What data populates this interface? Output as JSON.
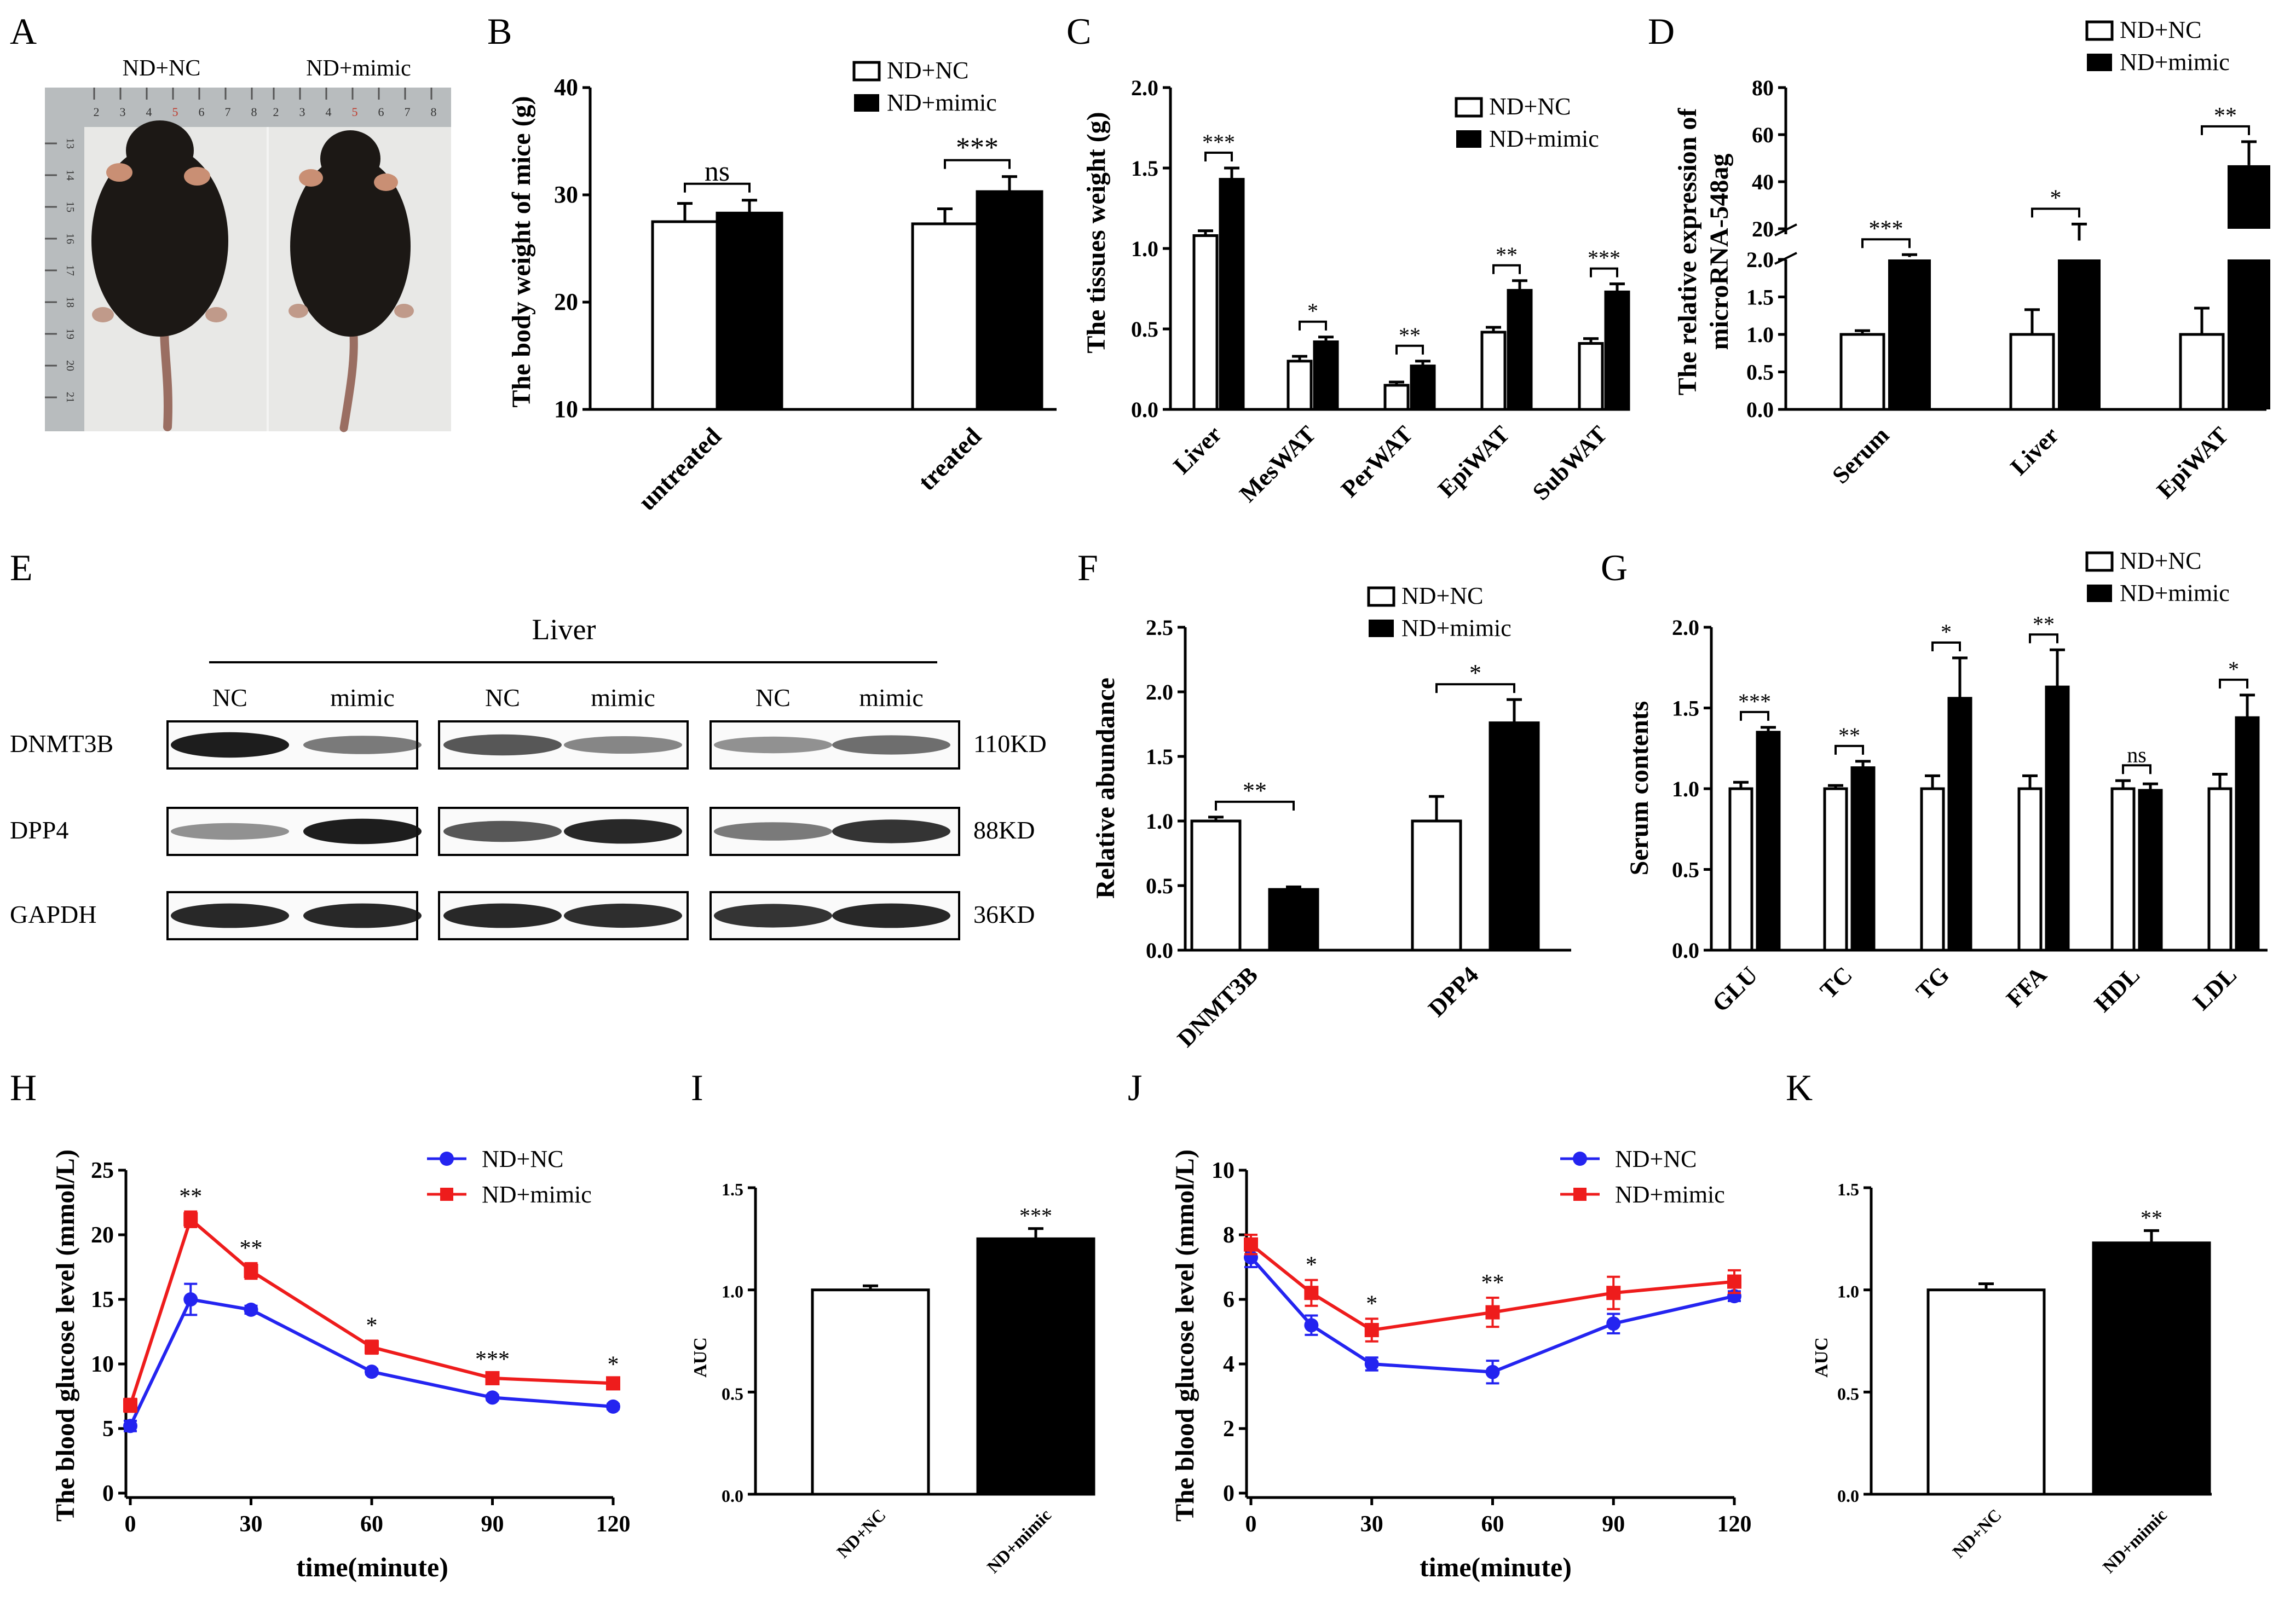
{
  "colors": {
    "blue": "#2424f0",
    "red": "#ee1c1c",
    "black": "#000000",
    "white": "#ffffff",
    "photo_bg": "#e8e8e6",
    "ruler": "#b8bcbe",
    "mouse": "#1c1815",
    "tail": "#9a6e62",
    "ear": "#c98f74"
  },
  "chart_data": [
    {
      "panel": "A",
      "type": "photo",
      "labels": [
        "ND+NC",
        "ND+mimic"
      ],
      "ruler_ticks_top": [
        "2",
        "3",
        "4",
        "5",
        "6",
        "7",
        "8"
      ],
      "ruler_ticks_left": [
        "13",
        "14",
        "15",
        "16",
        "17",
        "18",
        "19",
        "20",
        "21"
      ]
    },
    {
      "panel": "B",
      "type": "bar",
      "ylabel": "The body weight of mice (g)",
      "ylim": [
        10,
        40
      ],
      "yticks": [
        "10",
        "20",
        "30",
        "40"
      ],
      "categories": [
        "untreated",
        "treated"
      ],
      "legend": [
        "ND+NC",
        "ND+mimic"
      ],
      "series": [
        {
          "name": "ND+NC",
          "values": [
            27.5,
            27.3
          ],
          "errors": [
            1.7,
            1.4
          ]
        },
        {
          "name": "ND+mimic",
          "values": [
            28.3,
            30.3
          ],
          "errors": [
            1.2,
            1.4
          ]
        }
      ],
      "significance": [
        "ns",
        "***"
      ]
    },
    {
      "panel": "C",
      "type": "bar",
      "ylabel": "The tissues weight (g)",
      "ylim": [
        0,
        2.0
      ],
      "yticks": [
        "0.0",
        "0.5",
        "1.0",
        "1.5",
        "2.0"
      ],
      "categories": [
        "Liver",
        "MesWAT",
        "PerWAT",
        "EpiWAT",
        "SubWAT"
      ],
      "legend": [
        "ND+NC",
        "ND+mimic"
      ],
      "series": [
        {
          "name": "ND+NC",
          "values": [
            1.08,
            0.3,
            0.15,
            0.48,
            0.41
          ],
          "errors": [
            0.03,
            0.03,
            0.02,
            0.03,
            0.03
          ]
        },
        {
          "name": "ND+mimic",
          "values": [
            1.43,
            0.42,
            0.27,
            0.74,
            0.73
          ],
          "errors": [
            0.07,
            0.03,
            0.03,
            0.06,
            0.05
          ]
        }
      ],
      "significance": [
        "***",
        "*",
        "**",
        "**",
        "***"
      ]
    },
    {
      "panel": "D",
      "type": "bar",
      "ylabel": [
        "The relative expression of",
        "microRNA-548ag"
      ],
      "axis_break": true,
      "lower_ylim": [
        0,
        2.0
      ],
      "upper_ylim": [
        20,
        80
      ],
      "yticks_lower": [
        "0.0",
        "0.5",
        "1.0",
        "1.5",
        "2.0"
      ],
      "yticks_upper": [
        "20",
        "40",
        "60",
        "80"
      ],
      "categories": [
        "Serum",
        "Liver",
        "EpiWAT"
      ],
      "legend": [
        "ND+NC",
        "ND+mimic"
      ],
      "series": [
        {
          "name": "ND+NC",
          "values": [
            1.0,
            1.0,
            1.0
          ],
          "errors": [
            0.05,
            0.33,
            0.35
          ]
        },
        {
          "name": "ND+mimic",
          "values": [
            8,
            15,
            47
          ],
          "errors": [
            1,
            7,
            10
          ]
        }
      ],
      "significance": [
        "***",
        "*",
        "**"
      ]
    },
    {
      "panel": "E",
      "type": "blot",
      "title": "Liver",
      "lane_labels": [
        "NC",
        "mimic",
        "NC",
        "mimic",
        "NC",
        "mimic"
      ],
      "rows": [
        {
          "protein": "DNMT3B",
          "size": "110KD"
        },
        {
          "protein": "DPP4",
          "size": "88KD"
        },
        {
          "protein": "GAPDH",
          "size": "36KD"
        }
      ]
    },
    {
      "panel": "F",
      "type": "bar",
      "ylabel": "Relative abundance",
      "ylim": [
        0,
        2.5
      ],
      "yticks": [
        "0.0",
        "0.5",
        "1.0",
        "1.5",
        "2.0",
        "2.5"
      ],
      "categories": [
        "DNMT3B",
        "DPP4"
      ],
      "legend": [
        "ND+NC",
        "ND+mimic"
      ],
      "series": [
        {
          "name": "ND+NC",
          "values": [
            1.0,
            1.0
          ],
          "errors": [
            0.03,
            0.19
          ]
        },
        {
          "name": "ND+mimic",
          "values": [
            0.47,
            1.76
          ],
          "errors": [
            0.02,
            0.18
          ]
        }
      ],
      "significance": [
        "**",
        "*"
      ]
    },
    {
      "panel": "G",
      "type": "bar",
      "ylabel": "Serum contents",
      "ylim": [
        0,
        2.0
      ],
      "yticks": [
        "0.0",
        "0.5",
        "1.0",
        "1.5",
        "2.0"
      ],
      "categories": [
        "GLU",
        "TC",
        "TG",
        "FFA",
        "HDL",
        "LDL"
      ],
      "legend": [
        "ND+NC",
        "ND+mimic"
      ],
      "series": [
        {
          "name": "ND+NC",
          "values": [
            1.0,
            1.0,
            1.0,
            1.0,
            1.0,
            1.0
          ],
          "errors": [
            0.04,
            0.02,
            0.08,
            0.08,
            0.05,
            0.09
          ]
        },
        {
          "name": "ND+mimic",
          "values": [
            1.35,
            1.13,
            1.56,
            1.63,
            0.99,
            1.44
          ],
          "errors": [
            0.03,
            0.04,
            0.25,
            0.23,
            0.04,
            0.14
          ]
        }
      ],
      "significance": [
        "***",
        "**",
        "*",
        "**",
        "ns",
        "*"
      ]
    },
    {
      "panel": "H",
      "type": "line",
      "xlabel": "time(minute)",
      "ylabel": "The blood glucose level (mmol/L)",
      "xlim": [
        0,
        120
      ],
      "ylim": [
        0,
        25
      ],
      "xticks": [
        "0",
        "30",
        "60",
        "90",
        "120"
      ],
      "yticks": [
        "0",
        "5",
        "10",
        "15",
        "20",
        "25"
      ],
      "x": [
        0,
        15,
        30,
        60,
        90,
        120
      ],
      "legend": [
        "ND+NC",
        "ND+mimic"
      ],
      "series": [
        {
          "name": "ND+NC",
          "values": [
            5.2,
            15.0,
            14.2,
            9.4,
            7.4,
            6.7
          ],
          "errors": [
            0.4,
            1.2,
            0.3,
            0.2,
            0.2,
            0.2
          ]
        },
        {
          "name": "ND+mimic",
          "values": [
            6.8,
            21.2,
            17.2,
            11.3,
            8.9,
            8.5
          ],
          "errors": [
            0.5,
            0.6,
            0.6,
            0.5,
            0.3,
            0.3
          ]
        }
      ],
      "significance": [
        "",
        "**",
        "**",
        "*",
        "***",
        "*"
      ]
    },
    {
      "panel": "I",
      "type": "bar",
      "ylabel": "AUC",
      "ylim": [
        0,
        1.5
      ],
      "yticks": [
        "0.0",
        "0.5",
        "1.0",
        "1.5"
      ],
      "categories": [
        "ND+NC",
        "ND+mimic"
      ],
      "values": [
        1.0,
        1.25
      ],
      "errors": [
        0.02,
        0.05
      ],
      "significance": "***"
    },
    {
      "panel": "J",
      "type": "line",
      "xlabel": "time(minute)",
      "ylabel": "The blood glucose level (mmol/L)",
      "xlim": [
        0,
        120
      ],
      "ylim": [
        0,
        10
      ],
      "xticks": [
        "0",
        "30",
        "60",
        "90",
        "120"
      ],
      "yticks": [
        "0",
        "2",
        "4",
        "6",
        "8",
        "10"
      ],
      "x": [
        0,
        15,
        30,
        60,
        90,
        120
      ],
      "legend": [
        "ND+NC",
        "ND+mimic"
      ],
      "series": [
        {
          "name": "ND+NC",
          "values": [
            7.3,
            5.2,
            4.0,
            3.75,
            5.25,
            6.1
          ],
          "errors": [
            0.3,
            0.3,
            0.2,
            0.35,
            0.3,
            0.15
          ]
        },
        {
          "name": "ND+mimic",
          "values": [
            7.7,
            6.2,
            5.05,
            5.6,
            6.2,
            6.55
          ],
          "errors": [
            0.3,
            0.4,
            0.35,
            0.45,
            0.5,
            0.35
          ]
        }
      ],
      "significance": [
        "",
        "*",
        "*",
        "**",
        "",
        ""
      ]
    },
    {
      "panel": "K",
      "type": "bar",
      "ylabel": "AUC",
      "ylim": [
        0,
        1.5
      ],
      "yticks": [
        "0.0",
        "0.5",
        "1.0",
        "1.5"
      ],
      "categories": [
        "ND+NC",
        "ND+mimic"
      ],
      "values": [
        1.0,
        1.23
      ],
      "errors": [
        0.03,
        0.06
      ],
      "significance": "**"
    }
  ]
}
